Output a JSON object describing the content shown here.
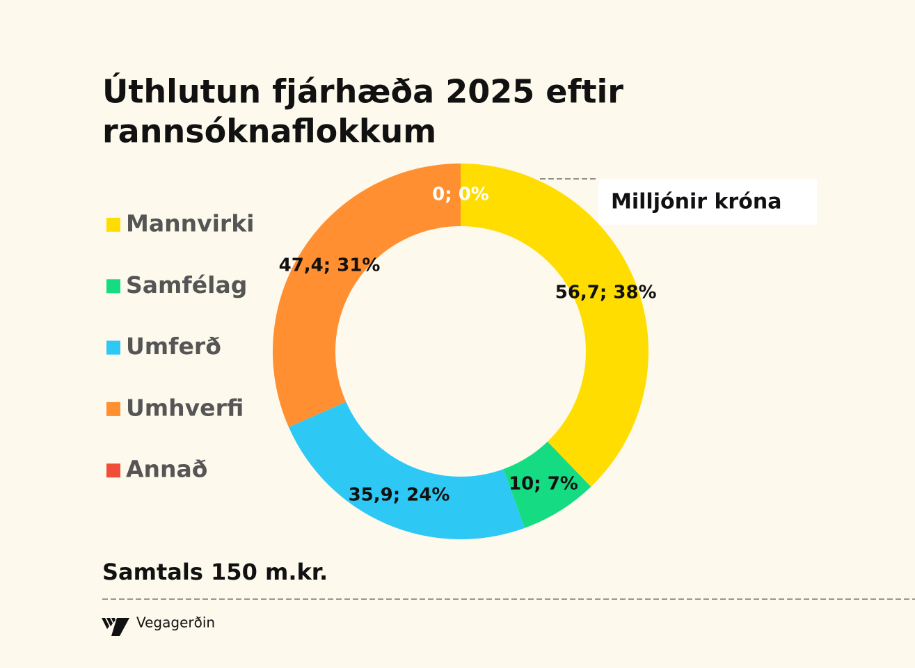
{
  "chart_data": {
    "type": "pie",
    "title": [
      "Úthlutun fjárhæða 2025 eftir",
      "rannsóknaflokkum"
    ],
    "categories": [
      "Mannvirki",
      "Samfélag",
      "Umferð",
      "Umhverfi",
      "Annað"
    ],
    "values": [
      56.7,
      10,
      35.9,
      47.4,
      0
    ],
    "value_labels": [
      "56,7; 38%",
      "10; 7%",
      "35,9; 24%",
      "47,4; 31%",
      "0; 0%"
    ],
    "colors": [
      "#ffdd00",
      "#15dc82",
      "#2ec8f5",
      "#ff8f30",
      "#f04e37"
    ],
    "value_label_colors": [
      "#111111",
      "#111111",
      "#111111",
      "#111111",
      "#ffffff"
    ],
    "unit_label": "Milljónir króna",
    "total_label": "Samtals 150 m.kr.",
    "legend": "left"
  },
  "footer": {
    "logo_text": "Vegagerðin"
  }
}
